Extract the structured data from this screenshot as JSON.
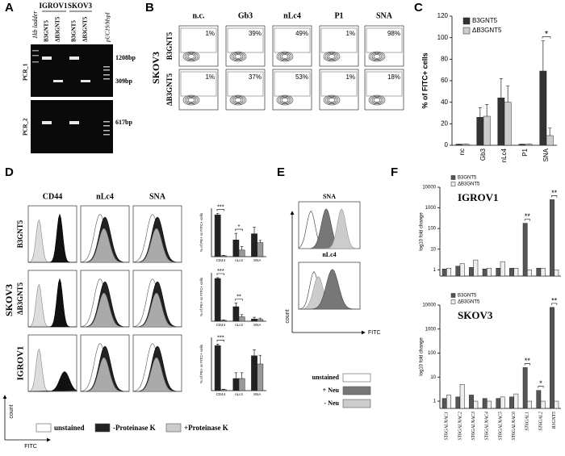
{
  "panel_labels": [
    "A",
    "B",
    "C",
    "D",
    "E",
    "F"
  ],
  "gel": {
    "ladder": "1kb ladder",
    "cell_lines": [
      "IGROV1",
      "SKOV3"
    ],
    "lanes": [
      "B3GNT5",
      "ΔB3GNT5",
      "B3GNT5",
      "ΔB3GNT5"
    ],
    "marker": "pUC19/MspI",
    "pcr": [
      "PCR_1",
      "PCR_2"
    ],
    "sizes": [
      "1208bp",
      "309bp",
      "617bp"
    ]
  },
  "flow": {
    "cell_line": "SKOV3",
    "columns": [
      "n.c.",
      "Gb3",
      "nLc4",
      "P1",
      "SNA"
    ],
    "rows": [
      {
        "label": "B3GNT5",
        "percentages": [
          "1%",
          "39%",
          "49%",
          "1%",
          "98%"
        ]
      },
      {
        "label": "ΔB3GNT5",
        "percentages": [
          "1%",
          "37%",
          "53%",
          "1%",
          "18%"
        ]
      }
    ]
  },
  "histograms": {
    "group": "SKOV3",
    "columns": [
      "CD44",
      "nLc4",
      "SNA"
    ],
    "rows": [
      "B3GNT5",
      "ΔB3GNT5",
      "IGROV1"
    ],
    "y_axis": "count",
    "x_axis": "FITC",
    "legend": [
      "unstained",
      "-Proteinase K",
      "+Proteinase K"
    ]
  },
  "neuraminidase": {
    "panels": [
      "SNA",
      "nLc4"
    ],
    "y_axis": "count",
    "x_axis": "FITC",
    "legend": [
      "unstained",
      "+ Neu",
      "- Neu"
    ]
  },
  "chart_data": [
    {
      "type": "bar",
      "y_label": "% of FITC+ cells",
      "categories": [
        "nc",
        "Gb3",
        "nLc4",
        "P1",
        "SNA"
      ],
      "series": [
        {
          "name": "B3GNT5",
          "color": "#333333",
          "values": [
            1,
            26,
            44,
            1,
            69
          ],
          "errors": [
            0,
            9,
            18,
            0,
            28
          ]
        },
        {
          "name": "ΔB3GNT5",
          "color": "#cccccc",
          "values": [
            1,
            27,
            40,
            1,
            9
          ],
          "errors": [
            0,
            11,
            15,
            0,
            7
          ]
        }
      ],
      "annotations": [
        null,
        null,
        null,
        null,
        "*"
      ],
      "ylim": [
        0,
        120
      ],
      "yticks": [
        0,
        20,
        40,
        60,
        80,
        100,
        120
      ],
      "legend": true
    },
    {
      "type": "bar",
      "y_label": "% of PE+ or FITC+ cells",
      "categories": [
        "CD44",
        "nLc4",
        "SNA"
      ],
      "series": [
        {
          "color": "#222222",
          "values": [
            95,
            38,
            52
          ],
          "errors": [
            3,
            15,
            15
          ]
        },
        {
          "color": "#999999",
          "values": [
            2,
            15,
            32
          ],
          "errors": [
            1,
            8,
            5
          ]
        }
      ],
      "annotations": [
        "***",
        "*",
        null
      ],
      "ylim": [
        0,
        110
      ]
    },
    {
      "type": "bar",
      "y_label": "% of PE+ or FITC+ cells",
      "categories": [
        "CD44",
        "nLc4",
        "SNA"
      ],
      "series": [
        {
          "color": "#222222",
          "values": [
            97,
            33,
            5
          ],
          "errors": [
            2,
            8,
            4
          ]
        },
        {
          "color": "#999999",
          "values": [
            2,
            10,
            4
          ],
          "errors": [
            1,
            5,
            3
          ]
        }
      ],
      "annotations": [
        "***",
        "**",
        null
      ],
      "ylim": [
        0,
        110
      ]
    },
    {
      "type": "bar",
      "y_label": "% of PE+ or FITC+ cells",
      "categories": [
        "CD44",
        "nLc4",
        "SNA"
      ],
      "series": [
        {
          "color": "#222222",
          "values": [
            93,
            25,
            72
          ],
          "errors": [
            3,
            12,
            12
          ]
        },
        {
          "color": "#999999",
          "values": [
            2,
            25,
            55
          ],
          "errors": [
            1,
            12,
            18
          ]
        }
      ],
      "annotations": [
        "***",
        null,
        null
      ],
      "ylim": [
        0,
        110
      ]
    },
    {
      "type": "bar",
      "title": "IGROV1",
      "y_label": "log10 fold change",
      "log_scale": true,
      "series": [
        {
          "name": "B3GNT5",
          "color": "#555555",
          "values": [
            1.1,
            1.5,
            1.3,
            1.1,
            1.2,
            1.2,
            180,
            1.2,
            2500
          ]
        },
        {
          "name": "ΔB3GNT5",
          "color": "#eeeeee",
          "values": [
            1.2,
            2,
            3,
            1.2,
            2.5,
            1.2,
            1,
            1.2,
            1
          ]
        }
      ],
      "annotations": [
        null,
        null,
        null,
        null,
        null,
        null,
        "**",
        null,
        "**"
      ],
      "ylim": [
        0.5,
        10000
      ],
      "yticks": [
        1,
        10,
        100,
        1000,
        10000
      ],
      "legend": true
    },
    {
      "type": "bar",
      "title": "SKOV3",
      "y_label": "log10 fold change",
      "log_scale": true,
      "categories": [
        "ST6GALNAC1",
        "ST6GALNAC2",
        "ST6GALNAC3",
        "ST6GALNAC4",
        "ST6GALNAC5",
        "ST6GALNAC6",
        "ST6GAL1",
        "ST6GAL2",
        "B3GNT5"
      ],
      "series": [
        {
          "name": "B3GNT5",
          "color": "#555555",
          "values": [
            1.3,
            1.5,
            1.8,
            1.3,
            1.3,
            1.5,
            25,
            2.8,
            8000
          ]
        },
        {
          "name": "ΔB3GNT5",
          "color": "#eeeeee",
          "values": [
            1.8,
            5,
            1,
            1,
            1.5,
            2,
            1,
            1,
            1
          ]
        }
      ],
      "annotations": [
        null,
        null,
        null,
        null,
        null,
        null,
        "**",
        "*",
        "**"
      ],
      "ylim": [
        0.5,
        10000
      ],
      "yticks": [
        1,
        10,
        100,
        1000,
        10000
      ],
      "legend": true
    }
  ]
}
